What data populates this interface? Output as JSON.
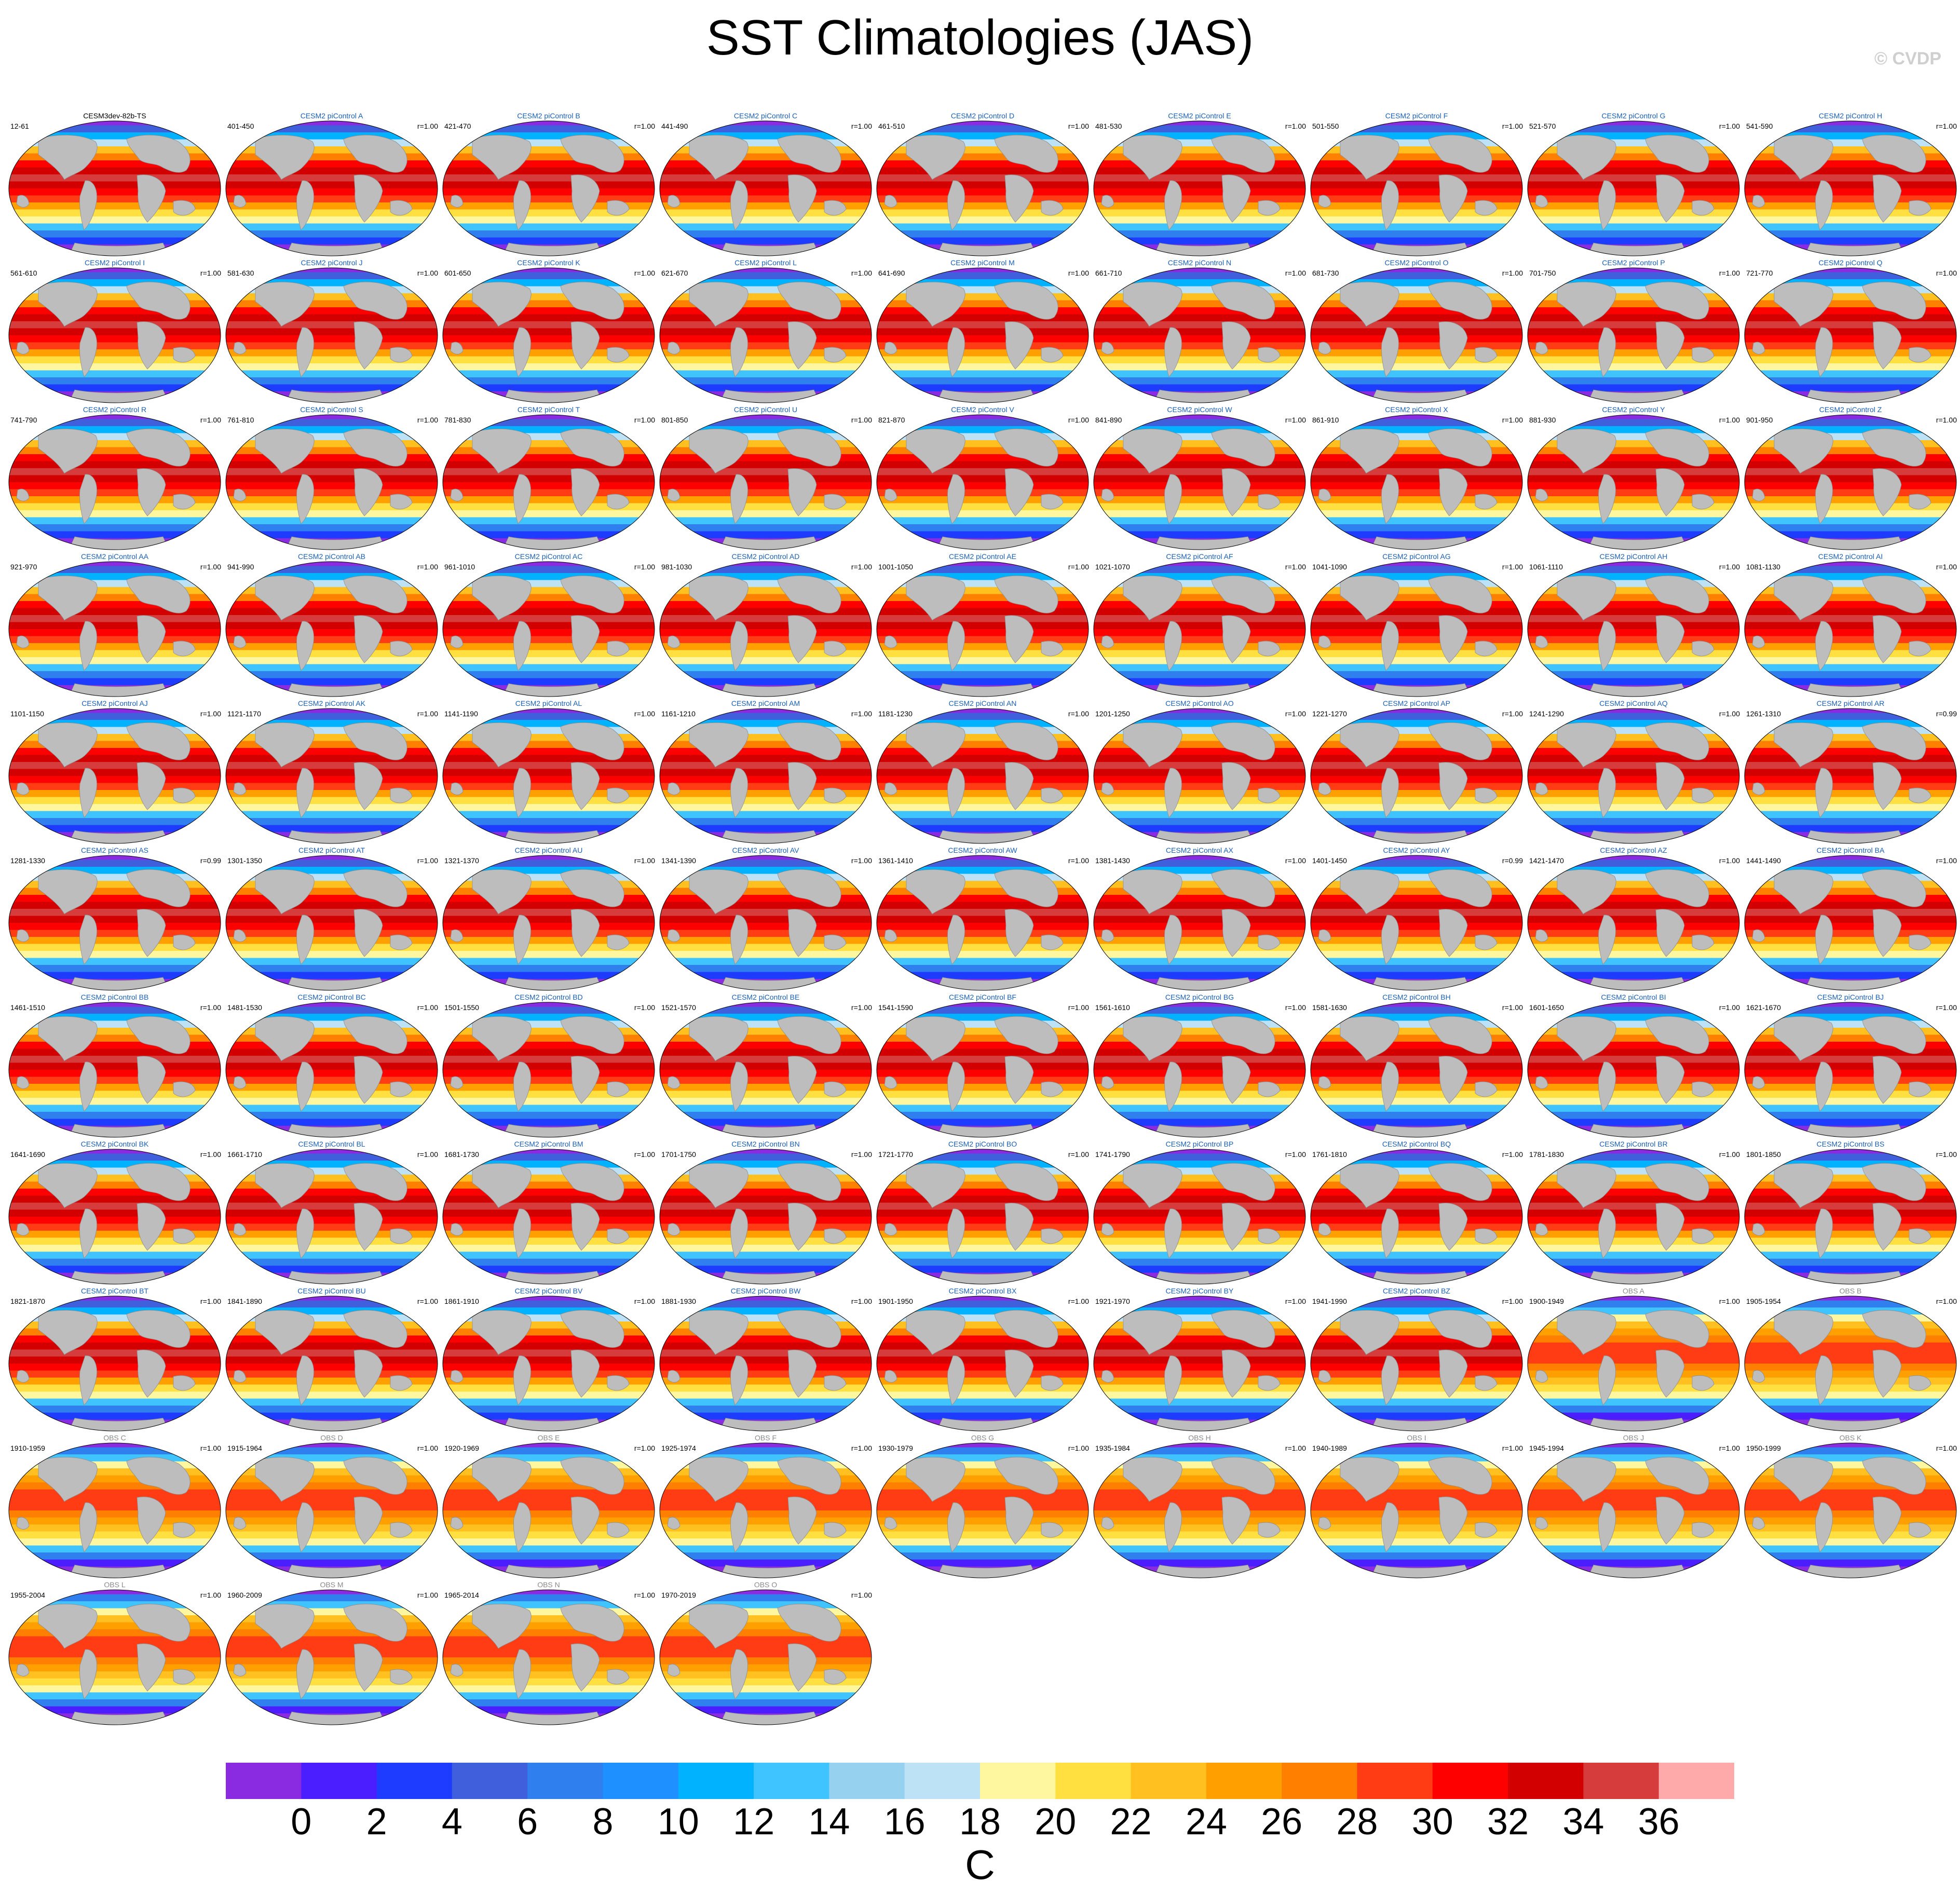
{
  "title": "SST Climatologies (JAS)",
  "copyright": "© CVDP",
  "chart_data": {
    "type": "heatmap",
    "title": "SST Climatologies (JAS)",
    "description_units": "C",
    "colorbar": {
      "label": "C",
      "ticks": [
        "0",
        "2",
        "4",
        "6",
        "8",
        "10",
        "12",
        "14",
        "16",
        "18",
        "20",
        "22",
        "24",
        "26",
        "28",
        "30",
        "32",
        "34",
        "36"
      ],
      "colors": [
        "#8a2be2",
        "#4b1eff",
        "#1e3cff",
        "#3f5fdc",
        "#2f7fef",
        "#1e90ff",
        "#00b2ff",
        "#40c4ff",
        "#96d2f0",
        "#bde2f5",
        "#fff7a0",
        "#ffe040",
        "#ffc020",
        "#ffa000",
        "#ff8000",
        "#ff3c14",
        "#ff0000",
        "#d20000",
        "#d73c3c",
        "#ffaaaa"
      ]
    },
    "panels": [
      {
        "name": "CESM3dev-82b-TS",
        "years": "12-61",
        "r": ""
      },
      {
        "name": "CESM2 piControl A",
        "years": "401-450",
        "r": "r=1.00"
      },
      {
        "name": "CESM2 piControl B",
        "years": "421-470",
        "r": "r=1.00"
      },
      {
        "name": "CESM2 piControl C",
        "years": "441-490",
        "r": "r=1.00"
      },
      {
        "name": "CESM2 piControl D",
        "years": "461-510",
        "r": "r=1.00"
      },
      {
        "name": "CESM2 piControl E",
        "years": "481-530",
        "r": "r=1.00"
      },
      {
        "name": "CESM2 piControl F",
        "years": "501-550",
        "r": "r=1.00"
      },
      {
        "name": "CESM2 piControl G",
        "years": "521-570",
        "r": "r=1.00"
      },
      {
        "name": "CESM2 piControl H",
        "years": "541-590",
        "r": "r=1.00"
      },
      {
        "name": "CESM2 piControl I",
        "years": "561-610",
        "r": "r=1.00"
      },
      {
        "name": "CESM2 piControl J",
        "years": "581-630",
        "r": "r=1.00"
      },
      {
        "name": "CESM2 piControl K",
        "years": "601-650",
        "r": "r=1.00"
      },
      {
        "name": "CESM2 piControl L",
        "years": "621-670",
        "r": "r=1.00"
      },
      {
        "name": "CESM2 piControl M",
        "years": "641-690",
        "r": "r=1.00"
      },
      {
        "name": "CESM2 piControl N",
        "years": "661-710",
        "r": "r=1.00"
      },
      {
        "name": "CESM2 piControl O",
        "years": "681-730",
        "r": "r=1.00"
      },
      {
        "name": "CESM2 piControl P",
        "years": "701-750",
        "r": "r=1.00"
      },
      {
        "name": "CESM2 piControl Q",
        "years": "721-770",
        "r": "r=1.00"
      },
      {
        "name": "CESM2 piControl R",
        "years": "741-790",
        "r": "r=1.00"
      },
      {
        "name": "CESM2 piControl S",
        "years": "761-810",
        "r": "r=1.00"
      },
      {
        "name": "CESM2 piControl T",
        "years": "781-830",
        "r": "r=1.00"
      },
      {
        "name": "CESM2 piControl U",
        "years": "801-850",
        "r": "r=1.00"
      },
      {
        "name": "CESM2 piControl V",
        "years": "821-870",
        "r": "r=1.00"
      },
      {
        "name": "CESM2 piControl W",
        "years": "841-890",
        "r": "r=1.00"
      },
      {
        "name": "CESM2 piControl X",
        "years": "861-910",
        "r": "r=1.00"
      },
      {
        "name": "CESM2 piControl Y",
        "years": "881-930",
        "r": "r=1.00"
      },
      {
        "name": "CESM2 piControl Z",
        "years": "901-950",
        "r": "r=1.00"
      },
      {
        "name": "CESM2 piControl AA",
        "years": "921-970",
        "r": "r=1.00"
      },
      {
        "name": "CESM2 piControl AB",
        "years": "941-990",
        "r": "r=1.00"
      },
      {
        "name": "CESM2 piControl AC",
        "years": "961-1010",
        "r": "r=1.00"
      },
      {
        "name": "CESM2 piControl AD",
        "years": "981-1030",
        "r": "r=1.00"
      },
      {
        "name": "CESM2 piControl AE",
        "years": "1001-1050",
        "r": "r=1.00"
      },
      {
        "name": "CESM2 piControl AF",
        "years": "1021-1070",
        "r": "r=1.00"
      },
      {
        "name": "CESM2 piControl AG",
        "years": "1041-1090",
        "r": "r=1.00"
      },
      {
        "name": "CESM2 piControl AH",
        "years": "1061-1110",
        "r": "r=1.00"
      },
      {
        "name": "CESM2 piControl AI",
        "years": "1081-1130",
        "r": "r=1.00"
      },
      {
        "name": "CESM2 piControl AJ",
        "years": "1101-1150",
        "r": "r=1.00"
      },
      {
        "name": "CESM2 piControl AK",
        "years": "1121-1170",
        "r": "r=1.00"
      },
      {
        "name": "CESM2 piControl AL",
        "years": "1141-1190",
        "r": "r=1.00"
      },
      {
        "name": "CESM2 piControl AM",
        "years": "1161-1210",
        "r": "r=1.00"
      },
      {
        "name": "CESM2 piControl AN",
        "years": "1181-1230",
        "r": "r=1.00"
      },
      {
        "name": "CESM2 piControl AO",
        "years": "1201-1250",
        "r": "r=1.00"
      },
      {
        "name": "CESM2 piControl AP",
        "years": "1221-1270",
        "r": "r=1.00"
      },
      {
        "name": "CESM2 piControl AQ",
        "years": "1241-1290",
        "r": "r=1.00"
      },
      {
        "name": "CESM2 piControl AR",
        "years": "1261-1310",
        "r": "r=0.99"
      },
      {
        "name": "CESM2 piControl AS",
        "years": "1281-1330",
        "r": "r=0.99"
      },
      {
        "name": "CESM2 piControl AT",
        "years": "1301-1350",
        "r": "r=1.00"
      },
      {
        "name": "CESM2 piControl AU",
        "years": "1321-1370",
        "r": "r=1.00"
      },
      {
        "name": "CESM2 piControl AV",
        "years": "1341-1390",
        "r": "r=1.00"
      },
      {
        "name": "CESM2 piControl AW",
        "years": "1361-1410",
        "r": "r=1.00"
      },
      {
        "name": "CESM2 piControl AX",
        "years": "1381-1430",
        "r": "r=1.00"
      },
      {
        "name": "CESM2 piControl AY",
        "years": "1401-1450",
        "r": "r=0.99"
      },
      {
        "name": "CESM2 piControl AZ",
        "years": "1421-1470",
        "r": "r=1.00"
      },
      {
        "name": "CESM2 piControl BA",
        "years": "1441-1490",
        "r": "r=1.00"
      },
      {
        "name": "CESM2 piControl BB",
        "years": "1461-1510",
        "r": "r=1.00"
      },
      {
        "name": "CESM2 piControl BC",
        "years": "1481-1530",
        "r": "r=1.00"
      },
      {
        "name": "CESM2 piControl BD",
        "years": "1501-1550",
        "r": "r=1.00"
      },
      {
        "name": "CESM2 piControl BE",
        "years": "1521-1570",
        "r": "r=1.00"
      },
      {
        "name": "CESM2 piControl BF",
        "years": "1541-1590",
        "r": "r=1.00"
      },
      {
        "name": "CESM2 piControl BG",
        "years": "1561-1610",
        "r": "r=1.00"
      },
      {
        "name": "CESM2 piControl BH",
        "years": "1581-1630",
        "r": "r=1.00"
      },
      {
        "name": "CESM2 piControl BI",
        "years": "1601-1650",
        "r": "r=1.00"
      },
      {
        "name": "CESM2 piControl BJ",
        "years": "1621-1670",
        "r": "r=1.00"
      },
      {
        "name": "CESM2 piControl BK",
        "years": "1641-1690",
        "r": "r=1.00"
      },
      {
        "name": "CESM2 piControl BL",
        "years": "1661-1710",
        "r": "r=1.00"
      },
      {
        "name": "CESM2 piControl BM",
        "years": "1681-1730",
        "r": "r=1.00"
      },
      {
        "name": "CESM2 piControl BN",
        "years": "1701-1750",
        "r": "r=1.00"
      },
      {
        "name": "CESM2 piControl BO",
        "years": "1721-1770",
        "r": "r=1.00"
      },
      {
        "name": "CESM2 piControl BP",
        "years": "1741-1790",
        "r": "r=1.00"
      },
      {
        "name": "CESM2 piControl BQ",
        "years": "1761-1810",
        "r": "r=1.00"
      },
      {
        "name": "CESM2 piControl BR",
        "years": "1781-1830",
        "r": "r=1.00"
      },
      {
        "name": "CESM2 piControl BS",
        "years": "1801-1850",
        "r": "r=1.00"
      },
      {
        "name": "CESM2 piControl BT",
        "years": "1821-1870",
        "r": "r=1.00"
      },
      {
        "name": "CESM2 piControl BU",
        "years": "1841-1890",
        "r": "r=1.00"
      },
      {
        "name": "CESM2 piControl BV",
        "years": "1861-1910",
        "r": "r=1.00"
      },
      {
        "name": "CESM2 piControl BW",
        "years": "1881-1930",
        "r": "r=1.00"
      },
      {
        "name": "CESM2 piControl BX",
        "years": "1901-1950",
        "r": "r=1.00"
      },
      {
        "name": "CESM2 piControl BY",
        "years": "1921-1970",
        "r": "r=1.00"
      },
      {
        "name": "CESM2 piControl BZ",
        "years": "1941-1990",
        "r": "r=1.00"
      },
      {
        "name": "OBS A",
        "years": "1900-1949",
        "r": "r=1.00"
      },
      {
        "name": "OBS B",
        "years": "1905-1954",
        "r": "r=1.00"
      },
      {
        "name": "OBS C",
        "years": "1910-1959",
        "r": "r=1.00"
      },
      {
        "name": "OBS D",
        "years": "1915-1964",
        "r": "r=1.00"
      },
      {
        "name": "OBS E",
        "years": "1920-1969",
        "r": "r=1.00"
      },
      {
        "name": "OBS F",
        "years": "1925-1974",
        "r": "r=1.00"
      },
      {
        "name": "OBS G",
        "years": "1930-1979",
        "r": "r=1.00"
      },
      {
        "name": "OBS H",
        "years": "1935-1984",
        "r": "r=1.00"
      },
      {
        "name": "OBS I",
        "years": "1940-1989",
        "r": "r=1.00"
      },
      {
        "name": "OBS J",
        "years": "1945-1994",
        "r": "r=1.00"
      },
      {
        "name": "OBS K",
        "years": "1950-1999",
        "r": "r=1.00"
      },
      {
        "name": "OBS L",
        "years": "1955-2004",
        "r": "r=1.00"
      },
      {
        "name": "OBS M",
        "years": "1960-2009",
        "r": "r=1.00"
      },
      {
        "name": "OBS N",
        "years": "1965-2014",
        "r": "r=1.00"
      },
      {
        "name": "OBS O",
        "years": "1970-2019",
        "r": "r=1.00"
      }
    ]
  }
}
